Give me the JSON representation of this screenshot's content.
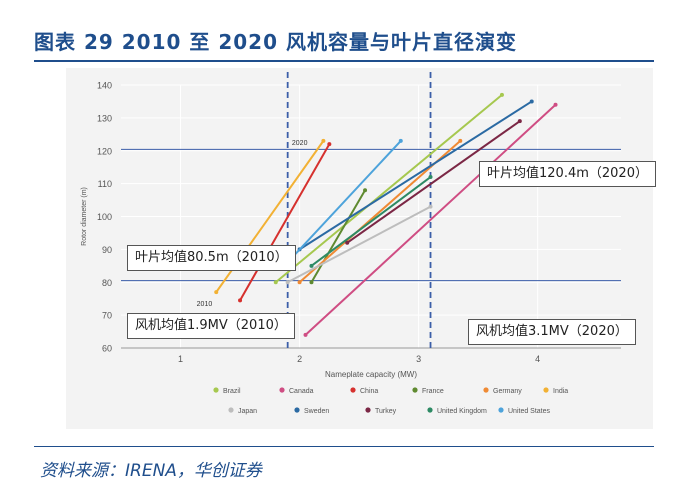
{
  "figure_title": "图表 29   2010 至 2020 风机容量与叶片直径演变",
  "source": "资料来源：IRENA，华创证券",
  "callouts": {
    "avg_diameter_2020": "叶片均值120.4m（2020）",
    "avg_diameter_2010": "叶片均值80.5m（2010）",
    "avg_capacity_2010": "风机均值1.9MV（2010）",
    "avg_capacity_2020": "风机均值3.1MV（2020）"
  },
  "colors": {
    "reference_line": "#3b5ea8",
    "grid": "#ffffff",
    "axis_text": "#555555"
  },
  "chart_data": {
    "type": "line",
    "xlabel": "Nameplate capacity (MW)",
    "ylabel": "Rotor diameter (m)",
    "xlim": [
      0.5,
      4.7
    ],
    "ylim": [
      60,
      140
    ],
    "xticks": [
      1,
      2,
      3,
      4
    ],
    "yticks": [
      60,
      70,
      80,
      90,
      100,
      110,
      120,
      130,
      140
    ],
    "grid": true,
    "legend_position": "bottom",
    "annotations": [
      {
        "text": "2010",
        "x": 1.3,
        "y": 74
      },
      {
        "text": "2020",
        "x": 2.1,
        "y": 123
      }
    ],
    "reference_lines": {
      "horizontal": [
        80.5,
        120.4
      ],
      "vertical": [
        1.9,
        3.1
      ]
    },
    "series": [
      {
        "name": "Brazil",
        "color": "#a6c84f",
        "points": [
          [
            1.8,
            80
          ],
          [
            3.7,
            137
          ]
        ]
      },
      {
        "name": "Canada",
        "color": "#cf4d83",
        "points": [
          [
            2.05,
            64
          ],
          [
            4.15,
            134
          ]
        ]
      },
      {
        "name": "China",
        "color": "#d6312e",
        "points": [
          [
            1.5,
            74.5
          ],
          [
            2.25,
            122
          ]
        ]
      },
      {
        "name": "France",
        "color": "#5f8a30",
        "points": [
          [
            2.1,
            80
          ],
          [
            2.55,
            108
          ]
        ]
      },
      {
        "name": "Germany",
        "color": "#ef8a34",
        "points": [
          [
            2.0,
            80
          ],
          [
            3.35,
            123
          ]
        ]
      },
      {
        "name": "India",
        "color": "#f2b134",
        "points": [
          [
            1.3,
            77
          ],
          [
            2.2,
            123
          ]
        ]
      },
      {
        "name": "Japan",
        "color": "#bdbdbd",
        "points": [
          [
            1.9,
            80
          ],
          [
            3.1,
            103
          ]
        ]
      },
      {
        "name": "Sweden",
        "color": "#2b6aa3",
        "points": [
          [
            2.0,
            90
          ],
          [
            3.95,
            135
          ]
        ]
      },
      {
        "name": "Turkey",
        "color": "#7b2745",
        "points": [
          [
            2.4,
            92
          ],
          [
            3.85,
            129
          ]
        ]
      },
      {
        "name": "United Kingdom",
        "color": "#2d8a64",
        "points": [
          [
            2.1,
            85
          ],
          [
            3.1,
            112
          ]
        ]
      },
      {
        "name": "United States",
        "color": "#4da3db",
        "points": [
          [
            1.95,
            88
          ],
          [
            2.85,
            123
          ]
        ]
      }
    ]
  }
}
